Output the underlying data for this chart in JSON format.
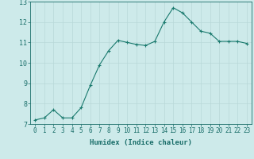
{
  "x": [
    0,
    1,
    2,
    3,
    4,
    5,
    6,
    7,
    8,
    9,
    10,
    11,
    12,
    13,
    14,
    15,
    16,
    17,
    18,
    19,
    20,
    21,
    22,
    23
  ],
  "y": [
    7.2,
    7.3,
    7.7,
    7.3,
    7.3,
    7.8,
    8.9,
    9.9,
    10.6,
    11.1,
    11.0,
    10.9,
    10.85,
    11.05,
    12.0,
    12.7,
    12.45,
    12.0,
    11.55,
    11.45,
    11.05,
    11.05,
    11.05,
    10.95
  ],
  "xlabel": "Humidex (Indice chaleur)",
  "xlim": [
    -0.5,
    23.5
  ],
  "ylim": [
    7,
    13
  ],
  "yticks": [
    7,
    8,
    9,
    10,
    11,
    12,
    13
  ],
  "xticks": [
    0,
    1,
    2,
    3,
    4,
    5,
    6,
    7,
    8,
    9,
    10,
    11,
    12,
    13,
    14,
    15,
    16,
    17,
    18,
    19,
    20,
    21,
    22,
    23
  ],
  "line_color": "#1a7a6e",
  "marker_color": "#1a7a6e",
  "bg_color": "#cdeaea",
  "grid_color": "#b8d8d8",
  "tick_color": "#1a6e6a",
  "label_color": "#1a6e6a",
  "font_family": "monospace",
  "tick_fontsize": 5.5,
  "label_fontsize": 6.5
}
